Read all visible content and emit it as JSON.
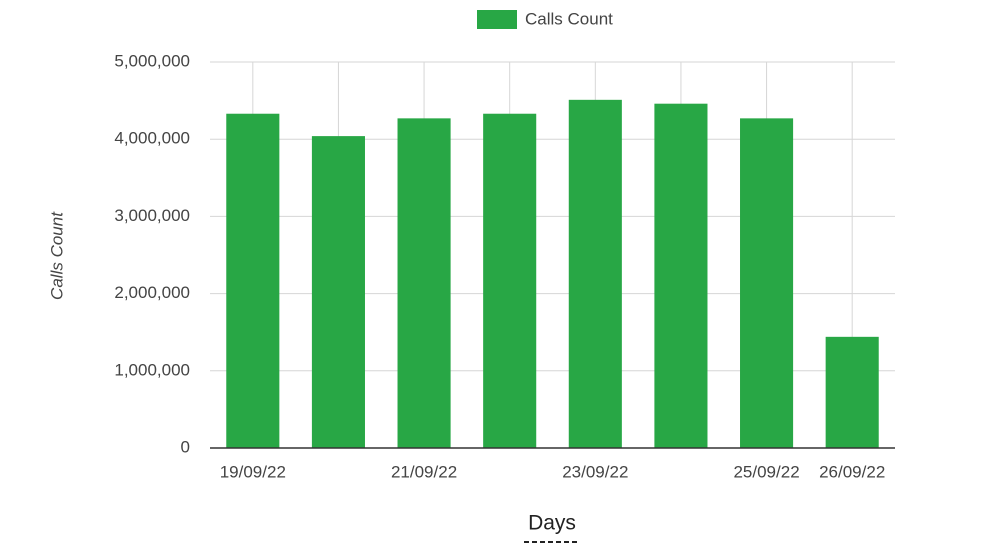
{
  "chart_data": {
    "type": "bar",
    "categories": [
      "19/09/22",
      null,
      "21/09/22",
      null,
      "23/09/22",
      null,
      "25/09/22",
      "26/09/22"
    ],
    "series": [
      {
        "name": "Calls Count",
        "color": "#28a745",
        "values": [
          4330000,
          4040000,
          4270000,
          4330000,
          4510000,
          4460000,
          4270000,
          1440000
        ]
      }
    ],
    "x_label": "Days",
    "y_label": "Calls Count",
    "ylim": [
      0,
      5000000
    ],
    "yticks": [
      0,
      {
        "value": 1000000,
        "label": "1,000,000"
      },
      {
        "value": 2000000,
        "label": "2,000,000"
      },
      {
        "value": 3000000,
        "label": "3,000,000"
      },
      {
        "value": 4000000,
        "label": "4,000,000"
      },
      {
        "value": 5000000,
        "label": "5,000,000"
      }
    ],
    "grid": true,
    "legend": "top"
  }
}
